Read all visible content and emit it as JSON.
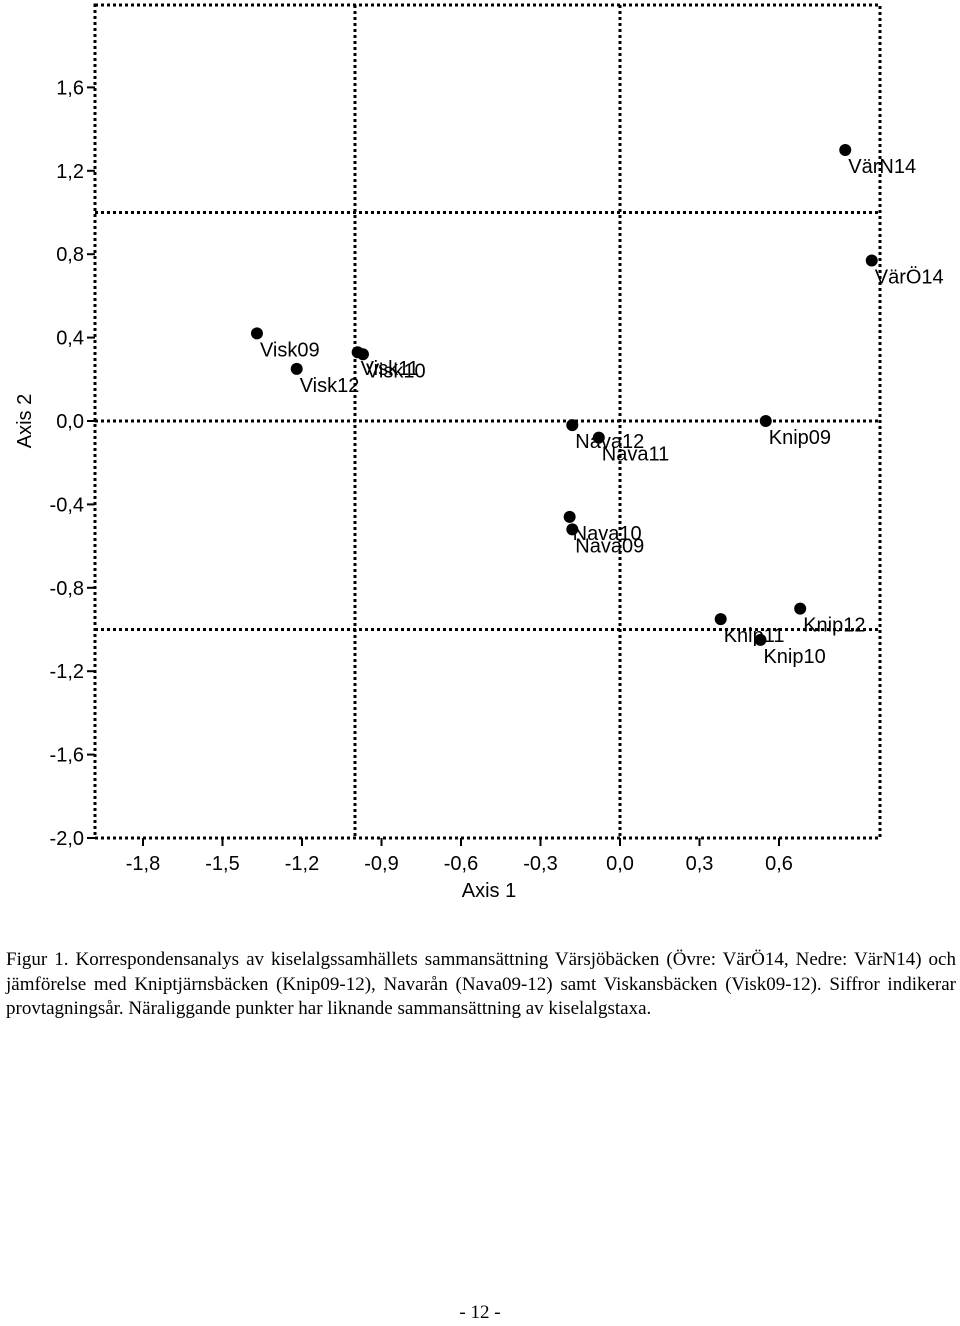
{
  "chart_data": {
    "type": "scatter",
    "xlabel": "Axis 1",
    "ylabel": "Axis 2",
    "xlim": [
      -2.1,
      1.06
    ],
    "ylim": [
      -2.0,
      2.0
    ],
    "x_ticks": [
      -1.8,
      -1.5,
      -1.2,
      -0.9,
      -0.6,
      -0.3,
      0.0,
      0.3,
      0.6
    ],
    "x_tick_labels": [
      "-1,8",
      "-1,5",
      "-1,2",
      "-0,9",
      "-0,6",
      "-0,3",
      "0,0",
      "0,3",
      "0,6"
    ],
    "y_ticks": [
      1.6,
      1.2,
      0.8,
      0.4,
      0.0,
      -0.4,
      -0.8,
      -1.2,
      -1.6,
      -2.0
    ],
    "y_tick_labels": [
      "1,6",
      "1,2",
      "0,8",
      "0,4",
      "0,0",
      "-0,4",
      "-0,8",
      "-1,2",
      "-1,6",
      "-2,0"
    ],
    "reference_lines": {
      "vertical": [
        -1.0,
        0.0
      ],
      "horizontal": [
        1.0,
        0.0,
        -1.0
      ]
    },
    "points": [
      {
        "label": "Visk09",
        "x": -1.37,
        "y": 0.42
      },
      {
        "label": "Visk12",
        "x": -1.22,
        "y": 0.25
      },
      {
        "label": "Visk11",
        "x": -0.99,
        "y": 0.33
      },
      {
        "label": "Visk10",
        "x": -0.97,
        "y": 0.32
      },
      {
        "label": "Nava12",
        "x": -0.18,
        "y": -0.02
      },
      {
        "label": "Nava11",
        "x": -0.08,
        "y": -0.08
      },
      {
        "label": "Nava10",
        "x": -0.19,
        "y": -0.46
      },
      {
        "label": "Nava09",
        "x": -0.18,
        "y": -0.52
      },
      {
        "label": "Knip09",
        "x": 0.55,
        "y": 0.0
      },
      {
        "label": "Knip11",
        "x": 0.38,
        "y": -0.95
      },
      {
        "label": "Knip10",
        "x": 0.53,
        "y": -1.05
      },
      {
        "label": "Knip12",
        "x": 0.68,
        "y": -0.9
      },
      {
        "label": "VärN14",
        "x": 0.85,
        "y": 1.3
      },
      {
        "label": "VärÖ14",
        "x": 0.95,
        "y": 0.77
      }
    ],
    "grid": false,
    "legend": "none"
  },
  "caption": "Figur 1. Korrespondensanalys av kiselalgssamhällets sammansättning Värsjöbäcken (Övre: VärÖ14, Nedre: VärN14) och jämförelse med Kniptjärnsbäcken (Knip09-12), Navarån (Nava09-12) samt Viskansbäcken (Visk09-12). Siffror indikerar provtagningsår. Näraliggande punkter har liknande sammansättning av kiselalgstaxa.",
  "page_number": "- 12 -"
}
